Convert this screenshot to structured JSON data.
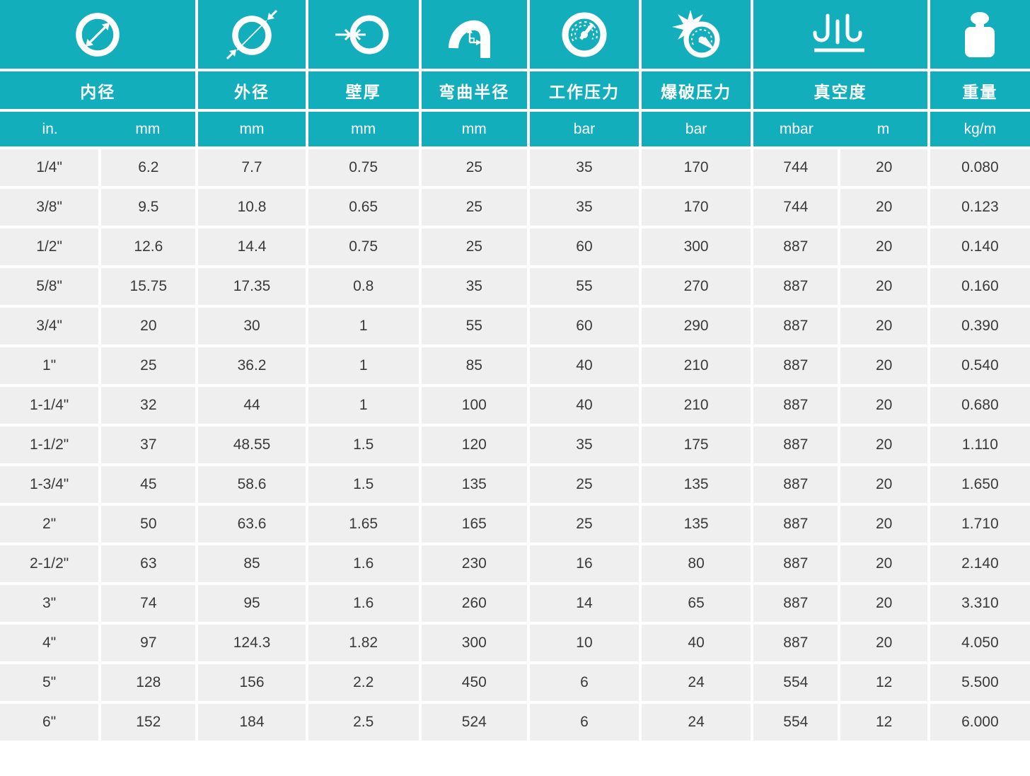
{
  "colors": {
    "accent": "#12aebc",
    "row_bg": "#efefef",
    "text": "#3a3a3a",
    "header_text": "#ffffff",
    "grid_gap": "#ffffff"
  },
  "columns": [
    {
      "id": "inner_diameter",
      "title": "内径",
      "icon": "inner-diameter-icon",
      "units": [
        "in.",
        "mm"
      ]
    },
    {
      "id": "outer_diameter",
      "title": "外径",
      "icon": "outer-diameter-icon",
      "units": [
        "mm"
      ]
    },
    {
      "id": "wall_thickness",
      "title": "壁厚",
      "icon": "wall-thickness-icon",
      "units": [
        "mm"
      ]
    },
    {
      "id": "bend_radius",
      "title": "弯曲半径",
      "icon": "bend-radius-icon",
      "units": [
        "mm"
      ]
    },
    {
      "id": "working_pressure",
      "title": "工作压力",
      "icon": "pressure-gauge-icon",
      "units": [
        "bar"
      ]
    },
    {
      "id": "burst_pressure",
      "title": "爆破压力",
      "icon": "burst-pressure-icon",
      "units": [
        "bar"
      ]
    },
    {
      "id": "vacuum",
      "title": "真空度",
      "icon": "vacuum-icon",
      "units": [
        "mbar",
        "m"
      ]
    },
    {
      "id": "weight",
      "title": "重量",
      "icon": "weight-icon",
      "units": [
        "kg/m"
      ]
    }
  ],
  "rows": [
    [
      "1/4\"",
      "6.2",
      "7.7",
      "0.75",
      "25",
      "35",
      "170",
      "744",
      "20",
      "0.080"
    ],
    [
      "3/8\"",
      "9.5",
      "10.8",
      "0.65",
      "25",
      "35",
      "170",
      "744",
      "20",
      "0.123"
    ],
    [
      "1/2\"",
      "12.6",
      "14.4",
      "0.75",
      "25",
      "60",
      "300",
      "887",
      "20",
      "0.140"
    ],
    [
      "5/8\"",
      "15.75",
      "17.35",
      "0.8",
      "35",
      "55",
      "270",
      "887",
      "20",
      "0.160"
    ],
    [
      "3/4\"",
      "20",
      "30",
      "1",
      "55",
      "60",
      "290",
      "887",
      "20",
      "0.390"
    ],
    [
      "1\"",
      "25",
      "36.2",
      "1",
      "85",
      "40",
      "210",
      "887",
      "20",
      "0.540"
    ],
    [
      "1-1/4\"",
      "32",
      "44",
      "1",
      "100",
      "40",
      "210",
      "887",
      "20",
      "0.680"
    ],
    [
      "1-1/2\"",
      "37",
      "48.55",
      "1.5",
      "120",
      "35",
      "175",
      "887",
      "20",
      "1.110"
    ],
    [
      "1-3/4\"",
      "45",
      "58.6",
      "1.5",
      "135",
      "25",
      "135",
      "887",
      "20",
      "1.650"
    ],
    [
      "2\"",
      "50",
      "63.6",
      "1.65",
      "165",
      "25",
      "135",
      "887",
      "20",
      "1.710"
    ],
    [
      "2-1/2\"",
      "63",
      "85",
      "1.6",
      "230",
      "16",
      "80",
      "887",
      "20",
      "2.140"
    ],
    [
      "3\"",
      "74",
      "95",
      "1.6",
      "260",
      "14",
      "65",
      "887",
      "20",
      "3.310"
    ],
    [
      "4\"",
      "97",
      "124.3",
      "1.82",
      "300",
      "10",
      "40",
      "887",
      "20",
      "4.050"
    ],
    [
      "5\"",
      "128",
      "156",
      "2.2",
      "450",
      "6",
      "24",
      "554",
      "12",
      "5.500"
    ],
    [
      "6\"",
      "152",
      "184",
      "2.5",
      "524",
      "6",
      "24",
      "554",
      "12",
      "6.000"
    ]
  ]
}
